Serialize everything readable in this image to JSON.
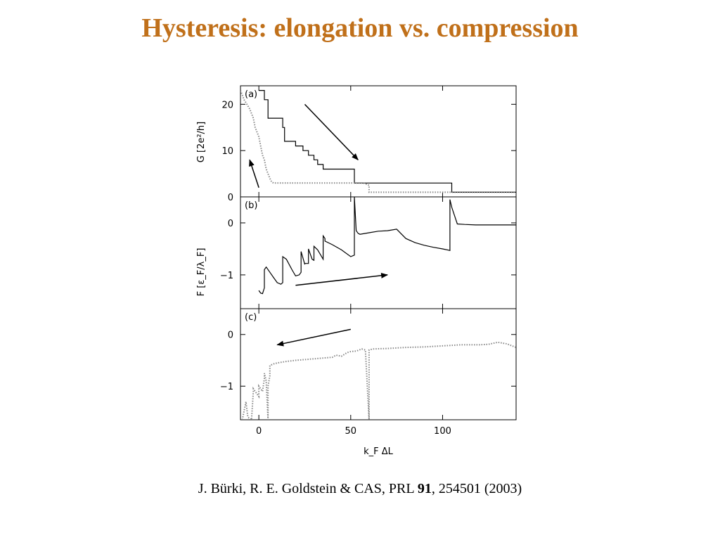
{
  "slide": {
    "title": "Hysteresis: elongation vs. compression"
  },
  "citation": {
    "authors": "J. Bürki, R. E. Goldstein & CAS, PRL ",
    "volume": "91",
    "rest": ", 254501 (2003)"
  },
  "colors": {
    "title": "#c0701a",
    "line": "#000000",
    "dotted": "#888888"
  },
  "chart_data": [
    {
      "type": "line",
      "panel_label": "(a)",
      "ylabel": "G [2e²/h]",
      "xlim": [
        -10,
        140
      ],
      "ylim": [
        0,
        24
      ],
      "yticks": [
        0,
        10,
        20
      ],
      "ytick_labels": [
        "0",
        "10",
        "20"
      ],
      "series": [
        {
          "style": "solid",
          "x": [
            0,
            3,
            3,
            5,
            5,
            13,
            13,
            14,
            14,
            20,
            20,
            24,
            24,
            27,
            27,
            30,
            30,
            32,
            32,
            35,
            35,
            52,
            52,
            105,
            105,
            140
          ],
          "y": [
            23,
            23,
            21,
            21,
            17,
            17,
            15,
            15,
            12,
            12,
            11,
            11,
            10,
            10,
            9,
            9,
            8,
            8,
            7,
            7,
            6,
            6,
            3,
            3,
            1,
            1
          ]
        },
        {
          "style": "dotted",
          "x": [
            -10,
            -8,
            -5,
            -3,
            -2,
            0,
            1,
            2,
            3,
            4,
            5,
            6,
            7,
            8,
            50,
            57,
            60,
            60,
            140
          ],
          "y": [
            23,
            21,
            19,
            17,
            15,
            13,
            11,
            9,
            8,
            6,
            5,
            4,
            3.2,
            3,
            3,
            3,
            2.5,
            1,
            1
          ]
        }
      ],
      "arrows": [
        {
          "from": [
            25,
            20
          ],
          "to": [
            54,
            8
          ]
        },
        {
          "from": [
            0,
            2
          ],
          "to": [
            -5,
            8
          ]
        }
      ]
    },
    {
      "type": "line",
      "panel_label": "(b)",
      "ylabel": "F [ε_F/λ_F]",
      "xlim": [
        -10,
        140
      ],
      "ylim": [
        -1.65,
        0.5
      ],
      "yticks": [
        -1,
        0
      ],
      "ytick_labels": [
        "−1",
        "0"
      ],
      "series": [
        {
          "style": "solid",
          "x": [
            0,
            1,
            2,
            3,
            3,
            4,
            6,
            8,
            10,
            12,
            13,
            13,
            15,
            18,
            20,
            22,
            23,
            23,
            25,
            25,
            27,
            27,
            29,
            30,
            30,
            32,
            35,
            35,
            36,
            36,
            40,
            45,
            50,
            52,
            52,
            53,
            54,
            55,
            60,
            65,
            70,
            75,
            80,
            85,
            90,
            95,
            100,
            104,
            104,
            105,
            108,
            112,
            118,
            125,
            140
          ],
          "y": [
            -1.3,
            -1.35,
            -1.36,
            -1.25,
            -0.9,
            -0.85,
            -0.95,
            -1.05,
            -1.15,
            -1.18,
            -1.15,
            -0.65,
            -0.7,
            -0.9,
            -1.02,
            -1.0,
            -0.95,
            -0.55,
            -0.8,
            -0.78,
            -0.78,
            -0.5,
            -0.7,
            -0.72,
            -0.45,
            -0.52,
            -0.7,
            -0.25,
            -0.3,
            -0.35,
            -0.42,
            -0.52,
            -0.65,
            -0.62,
            0.5,
            -0.15,
            -0.2,
            -0.22,
            -0.19,
            -0.16,
            -0.15,
            -0.12,
            -0.3,
            -0.38,
            -0.43,
            -0.47,
            -0.5,
            -0.53,
            0.45,
            0.3,
            -0.02,
            -0.03,
            -0.04,
            -0.04,
            -0.04
          ]
        }
      ],
      "arrows": [
        {
          "from": [
            20,
            -1.2
          ],
          "to": [
            70,
            -1.0
          ]
        }
      ]
    },
    {
      "type": "line",
      "panel_label": "(c)",
      "ylabel": "",
      "xlim": [
        -10,
        140
      ],
      "ylim": [
        -1.65,
        0.5
      ],
      "yticks": [
        -1,
        0
      ],
      "ytick_labels": [
        "−1",
        "0"
      ],
      "series": [
        {
          "style": "dotted",
          "x": [
            -9,
            -7,
            -6,
            -4,
            -3,
            -3,
            -1,
            0,
            0,
            1,
            2,
            3,
            3,
            4,
            5,
            5,
            6,
            6,
            8,
            10,
            15,
            20,
            30,
            40,
            42,
            45,
            48,
            50,
            53,
            56,
            58,
            60,
            60,
            62,
            70,
            80,
            90,
            100,
            110,
            120,
            125,
            130,
            135,
            140
          ],
          "y": [
            -1.65,
            -1.3,
            -1.6,
            -1.65,
            -1.1,
            -1.05,
            -1.15,
            -1.2,
            -1.0,
            -1.05,
            -1.1,
            -0.85,
            -0.75,
            -0.9,
            -1.65,
            -1.0,
            -0.8,
            -0.6,
            -0.57,
            -0.55,
            -0.52,
            -0.5,
            -0.47,
            -0.44,
            -0.4,
            -0.42,
            -0.35,
            -0.33,
            -0.32,
            -0.28,
            -0.3,
            -1.65,
            -0.3,
            -0.28,
            -0.27,
            -0.25,
            -0.24,
            -0.22,
            -0.2,
            -0.2,
            -0.19,
            -0.15,
            -0.18,
            -0.25
          ]
        }
      ],
      "arrows": [
        {
          "from": [
            50,
            0.1
          ],
          "to": [
            10,
            -0.2
          ]
        }
      ]
    }
  ],
  "xaxis": {
    "xticks": [
      0,
      50,
      100
    ],
    "xtick_labels": [
      "0",
      "50",
      "100"
    ],
    "xlabel": "k_F ΔL"
  }
}
